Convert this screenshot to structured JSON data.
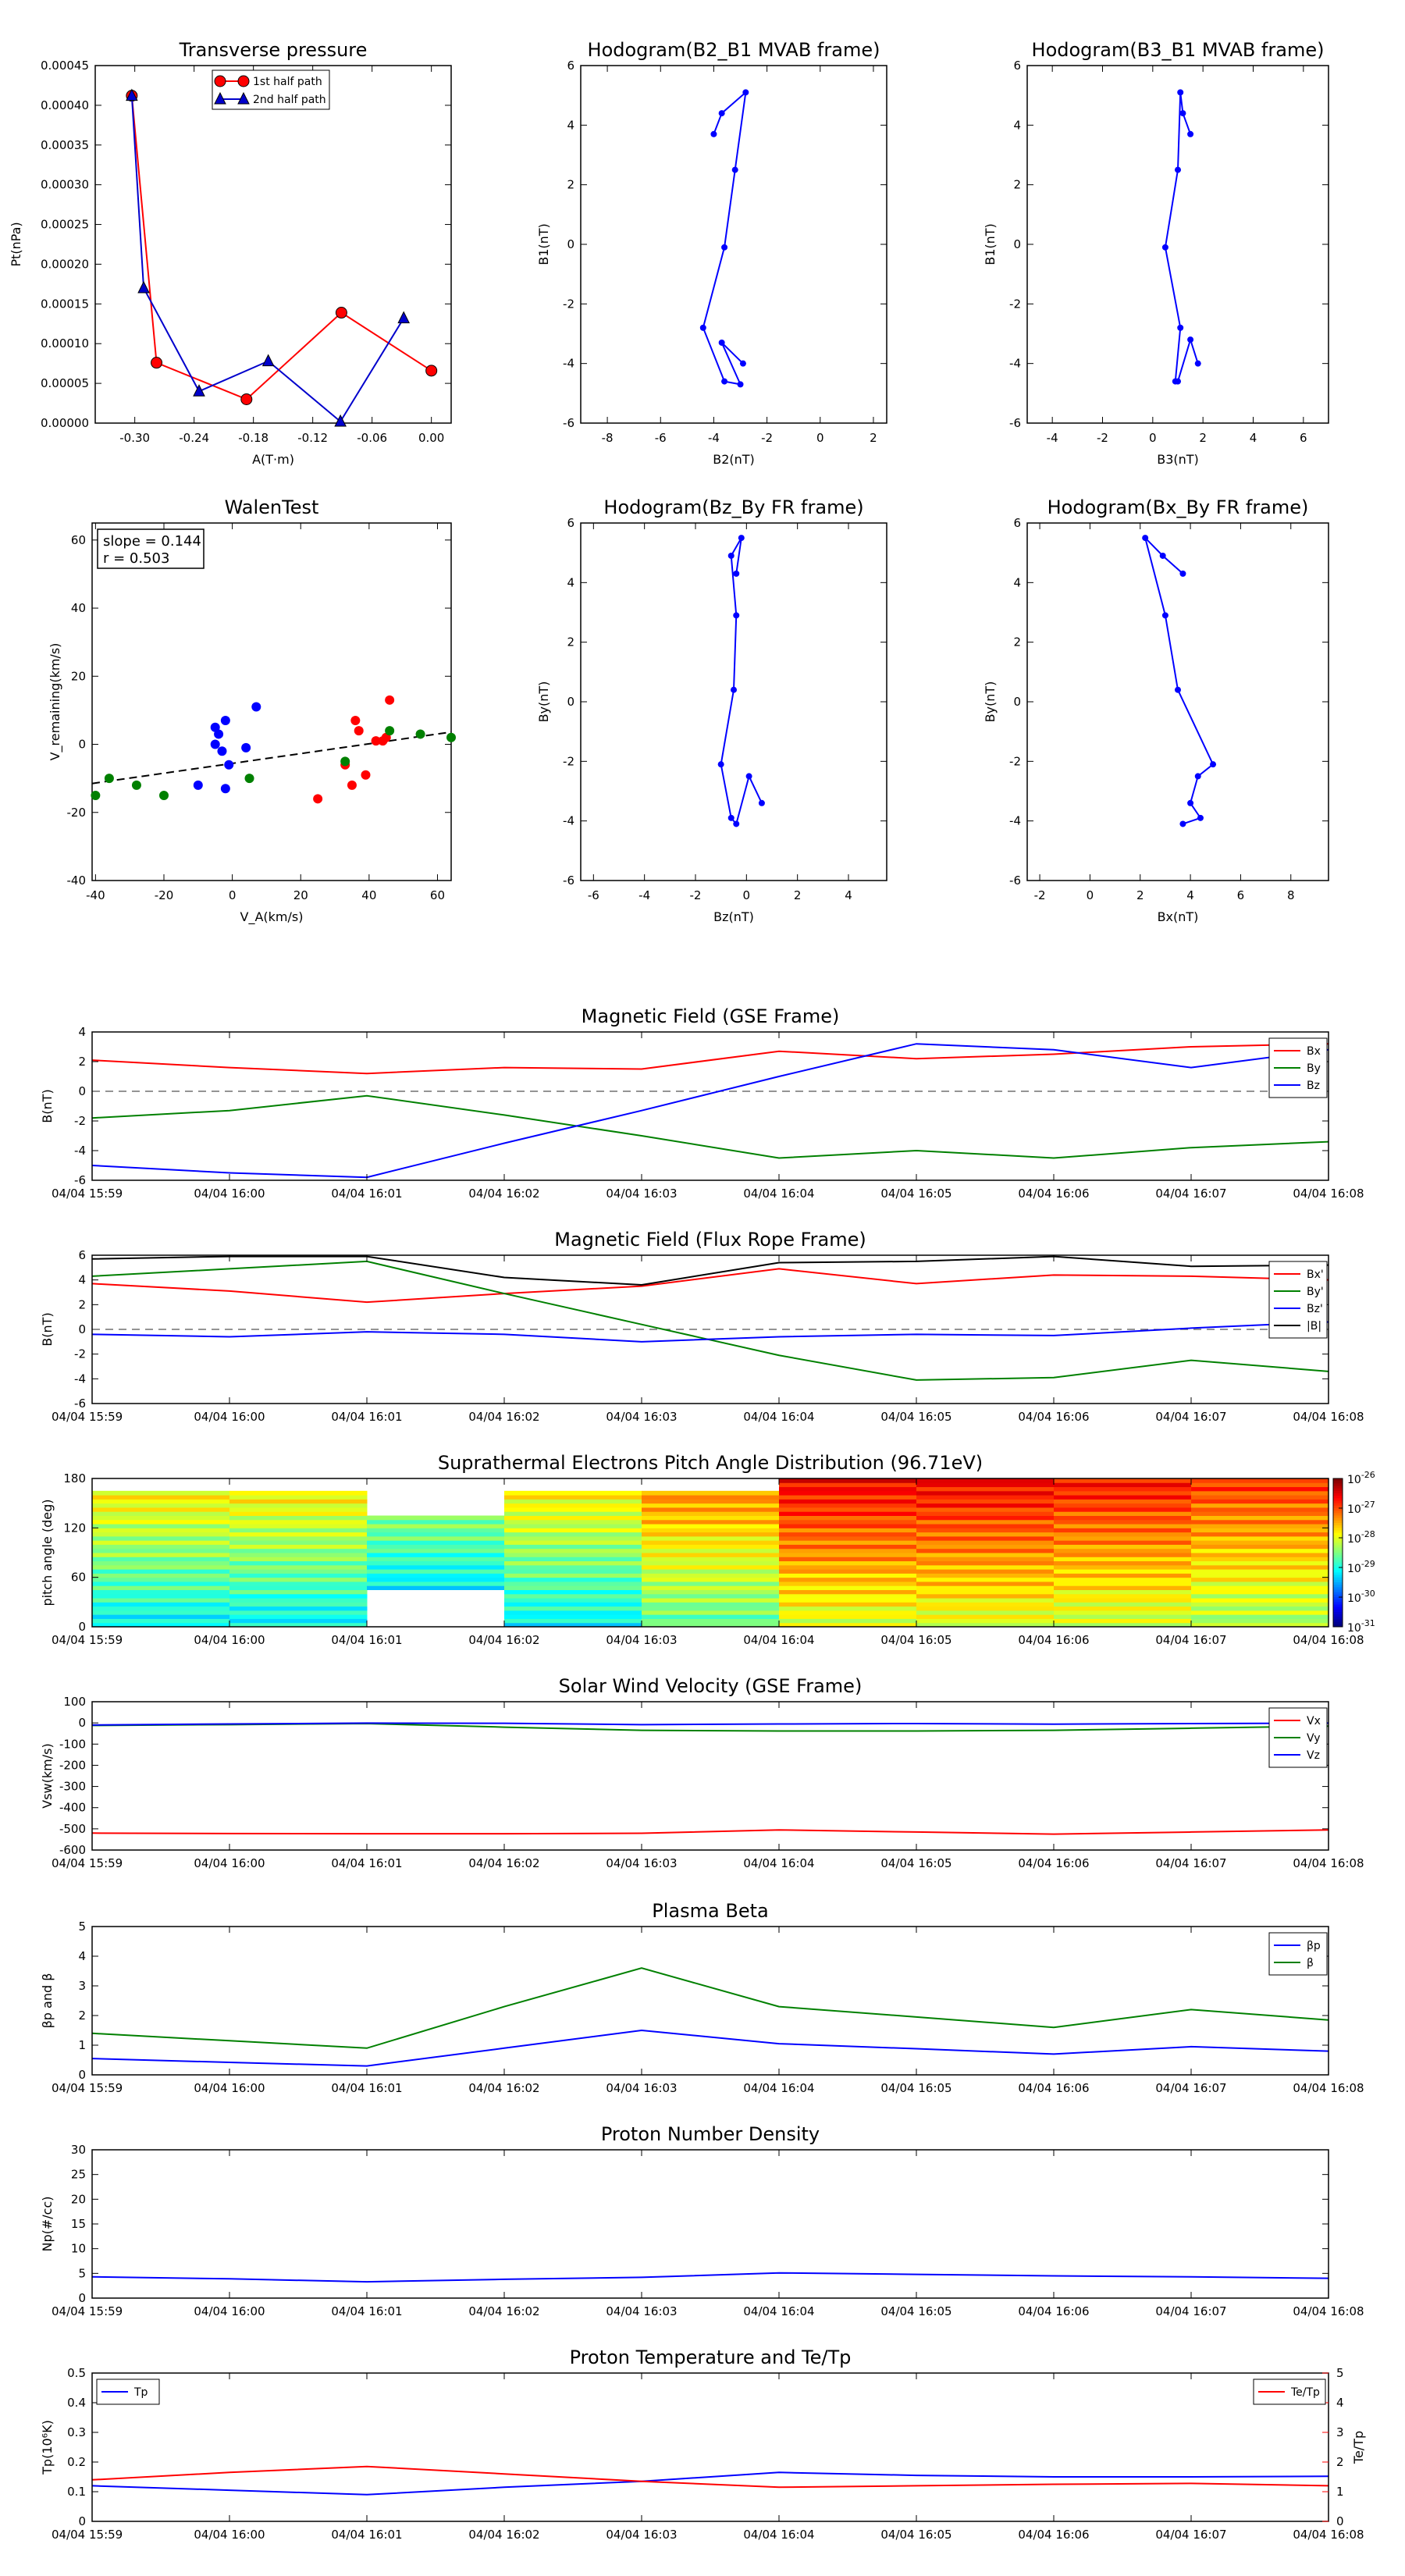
{
  "chart_data": [
    {
      "id": "pt",
      "type": "scatter",
      "title": "Transverse pressure",
      "xlabel": "A(T·m)",
      "ylabel": "Pt(nPa)",
      "xlim": [
        -0.34,
        0.02
      ],
      "ylim": [
        0,
        0.00045
      ],
      "xticks": [
        -0.3,
        -0.24,
        -0.18,
        -0.12,
        -0.06,
        0.0
      ],
      "xtick_labels": [
        "-0.30",
        "-0.24",
        "-0.18",
        "-0.12",
        "-0.06",
        "0.00"
      ],
      "yticks": [
        0,
        5e-05,
        0.0001,
        0.00015,
        0.0002,
        0.00025,
        0.0003,
        0.00035,
        0.0004,
        0.00045
      ],
      "ytick_labels": [
        "0.00000",
        "0.00005",
        "0.00010",
        "0.00015",
        "0.00020",
        "0.00025",
        "0.00030",
        "0.00035",
        "0.00040",
        "0.00045"
      ],
      "legend": "top-center",
      "series": [
        {
          "name": "1st half path",
          "color": "#ff0000",
          "marker": "circle",
          "x": [
            -0.303,
            -0.278,
            -0.187,
            -0.091,
            0.0
          ],
          "y": [
            0.000412,
            7.6e-05,
            3e-05,
            0.000139,
            6.6e-05
          ]
        },
        {
          "name": "2nd half path",
          "color": "#0000cc",
          "marker": "triangle",
          "x": [
            -0.303,
            -0.291,
            -0.235,
            -0.165,
            -0.092,
            -0.028
          ],
          "y": [
            0.000412,
            0.00017,
            4e-05,
            7.8e-05,
            2e-06,
            0.000132
          ]
        }
      ]
    },
    {
      "id": "h21",
      "type": "line",
      "title": "Hodogram(B2_B1 MVAB frame)",
      "xlabel": "B2(nT)",
      "ylabel": "B1(nT)",
      "xlim": [
        -9,
        2.5
      ],
      "ylim": [
        -6,
        6
      ],
      "xticks": [
        -8,
        -6,
        -4,
        -2,
        0,
        2
      ],
      "yticks": [
        -6,
        -4,
        -2,
        0,
        2,
        4,
        6
      ],
      "series": [
        {
          "color": "#0000ff",
          "x": [
            -4.0,
            -3.7,
            -2.8,
            -3.2,
            -3.6,
            -4.4,
            -3.6,
            -3.0,
            -3.7,
            -2.9
          ],
          "y": [
            3.7,
            4.4,
            5.1,
            2.5,
            -0.1,
            -2.8,
            -4.6,
            -4.7,
            -3.3,
            -4.0
          ]
        }
      ]
    },
    {
      "id": "h31",
      "type": "line",
      "title": "Hodogram(B3_B1 MVAB frame)",
      "xlabel": "B3(nT)",
      "ylabel": "B1(nT)",
      "xlim": [
        -5,
        7
      ],
      "ylim": [
        -6,
        6
      ],
      "xticks": [
        -4,
        -2,
        0,
        2,
        4,
        6
      ],
      "yticks": [
        -6,
        -4,
        -2,
        0,
        2,
        4,
        6
      ],
      "series": [
        {
          "color": "#0000ff",
          "x": [
            1.5,
            1.2,
            1.1,
            1.0,
            0.5,
            1.1,
            0.9,
            1.0,
            1.5,
            1.8
          ],
          "y": [
            3.7,
            4.4,
            5.1,
            2.5,
            -0.1,
            -2.8,
            -4.6,
            -4.6,
            -3.2,
            -4.0
          ]
        }
      ]
    },
    {
      "id": "walen",
      "type": "scatter",
      "title": "WalenTest",
      "xlabel": "V_A(km/s)",
      "ylabel": "V_remaining(km/s)",
      "xlim": [
        -41,
        64
      ],
      "ylim": [
        -40,
        65
      ],
      "xticks": [
        -40,
        -20,
        0,
        20,
        40,
        60
      ],
      "yticks": [
        -40,
        -20,
        0,
        20,
        40,
        60
      ],
      "annotation": {
        "slope": "slope = 0.144",
        "r": "r = 0.503"
      },
      "fit": {
        "slope": 0.144,
        "intercept": -5.6,
        "color": "#000000"
      },
      "series": [
        {
          "color": "#0000ff",
          "x": [
            -5,
            -4,
            -2,
            -1,
            -3,
            -5,
            -10,
            -2,
            4,
            7
          ],
          "y": [
            5,
            3,
            7,
            -6,
            -2,
            0,
            -12,
            -13,
            -1,
            11
          ]
        },
        {
          "color": "#ff0000",
          "x": [
            25,
            33,
            35,
            36,
            37,
            39,
            42,
            44,
            45,
            46
          ],
          "y": [
            -16,
            -6,
            -12,
            7,
            4,
            -9,
            1,
            1,
            2,
            13
          ]
        },
        {
          "color": "#008000",
          "x": [
            -40,
            -36,
            -28,
            -20,
            5,
            33,
            46,
            55,
            64
          ],
          "y": [
            -15,
            -10,
            -12,
            -15,
            -10,
            -5,
            4,
            3,
            2
          ]
        }
      ]
    },
    {
      "id": "hzy",
      "type": "line",
      "title": "Hodogram(Bz_By FR frame)",
      "xlabel": "Bz(nT)",
      "ylabel": "By(nT)",
      "xlim": [
        -6.5,
        5.5
      ],
      "ylim": [
        -6,
        6
      ],
      "xticks": [
        -6,
        -4,
        -2,
        0,
        2,
        4
      ],
      "yticks": [
        -6,
        -4,
        -2,
        0,
        2,
        4,
        6
      ],
      "series": [
        {
          "color": "#0000ff",
          "x": [
            -0.4,
            -0.2,
            -0.6,
            -0.4,
            -0.5,
            -1.0,
            -0.6,
            -0.4,
            0.1,
            0.6
          ],
          "y": [
            4.3,
            5.5,
            4.9,
            2.9,
            0.4,
            -2.1,
            -3.9,
            -4.1,
            -2.5,
            -3.4
          ]
        }
      ]
    },
    {
      "id": "hxy",
      "type": "line",
      "title": "Hodogram(Bx_By FR frame)",
      "xlabel": "Bx(nT)",
      "ylabel": "By(nT)",
      "xlim": [
        -2.5,
        9.5
      ],
      "ylim": [
        -6,
        6
      ],
      "xticks": [
        -2,
        0,
        2,
        4,
        6,
        8
      ],
      "yticks": [
        -6,
        -4,
        -2,
        0,
        2,
        4,
        6
      ],
      "series": [
        {
          "color": "#0000ff",
          "x": [
            3.7,
            2.9,
            2.2,
            3.0,
            3.5,
            4.9,
            4.3,
            4.0,
            4.4,
            3.7
          ],
          "y": [
            4.3,
            4.9,
            5.5,
            2.9,
            0.4,
            -2.1,
            -2.5,
            -3.4,
            -3.9,
            -4.1
          ]
        }
      ]
    },
    {
      "id": "bgse",
      "type": "line",
      "title": "Magnetic Field (GSE Frame)",
      "ylabel": "B(nT)",
      "ylim": [
        -6,
        4
      ],
      "yticks": [
        -6,
        -4,
        -2,
        0,
        2,
        4
      ],
      "zero_line": true,
      "legend": "top-right",
      "series": [
        {
          "name": "Bx",
          "color": "#ff0000",
          "values": [
            2.1,
            1.6,
            1.2,
            1.6,
            1.5,
            2.7,
            2.2,
            2.5,
            3.0,
            3.2
          ]
        },
        {
          "name": "By",
          "color": "#008000",
          "values": [
            -1.8,
            -1.3,
            -0.3,
            -1.6,
            -3.0,
            -4.5,
            -4.0,
            -4.5,
            -3.8,
            -3.4
          ]
        },
        {
          "name": "Bz",
          "color": "#0000ff",
          "values": [
            -5.0,
            -5.5,
            -5.8,
            -3.5,
            -1.3,
            1.0,
            3.2,
            2.8,
            1.6,
            2.8
          ]
        }
      ]
    },
    {
      "id": "bfr",
      "type": "line",
      "title": "Magnetic Field (Flux Rope Frame)",
      "ylabel": "B(nT)",
      "ylim": [
        -6,
        6
      ],
      "yticks": [
        -6,
        -4,
        -2,
        0,
        2,
        4,
        6
      ],
      "zero_line": true,
      "legend": "right",
      "series": [
        {
          "name": "Bx'",
          "color": "#ff0000",
          "values": [
            3.7,
            3.1,
            2.2,
            2.9,
            3.5,
            4.9,
            3.7,
            4.4,
            4.3,
            4.0
          ]
        },
        {
          "name": "By'",
          "color": "#008000",
          "values": [
            4.3,
            4.9,
            5.5,
            2.9,
            0.4,
            -2.1,
            -4.1,
            -3.9,
            -2.5,
            -3.4
          ]
        },
        {
          "name": "Bz'",
          "color": "#0000ff",
          "values": [
            -0.4,
            -0.6,
            -0.2,
            -0.4,
            -1.0,
            -0.6,
            -0.4,
            -0.5,
            0.1,
            0.6
          ]
        },
        {
          "name": "|B|",
          "color": "#000000",
          "values": [
            5.7,
            5.9,
            5.9,
            4.2,
            3.6,
            5.4,
            5.5,
            5.9,
            5.1,
            5.2
          ]
        }
      ]
    },
    {
      "id": "pad",
      "type": "heatmap",
      "title": "Suprathermal Electrons Pitch Angle Distribution (96.71eV)",
      "ylabel": "pitch angle (deg)",
      "ylim": [
        0,
        180
      ],
      "yticks": [
        0,
        60,
        120,
        180
      ],
      "colorbar_labels": [
        "10-26",
        "10-27",
        "10-28",
        "10-29",
        "10-30",
        "10-31"
      ],
      "colorbar_exponents": [
        "-26",
        "-27",
        "-28",
        "-29",
        "-30",
        "-31"
      ],
      "log_min": -31,
      "log_max": -26,
      "column_tops": [
        165,
        165,
        135,
        165,
        165,
        180,
        180,
        180,
        180
      ],
      "column_bottoms": [
        0,
        0,
        45,
        0,
        0,
        0,
        0,
        0,
        0
      ],
      "column_levels": [
        -28.4,
        -28.4,
        -28.8,
        -28.4,
        -27.9,
        -27.3,
        -27.3,
        -27.4,
        -27.6
      ]
    },
    {
      "id": "vsw",
      "type": "line",
      "title": "Solar Wind Velocity (GSE Frame)",
      "ylabel": "Vsw(km/s)",
      "ylim": [
        -600,
        100
      ],
      "yticks": [
        -600,
        -500,
        -400,
        -300,
        -200,
        -100,
        0,
        100
      ],
      "legend": "top-right",
      "series": [
        {
          "name": "Vx",
          "color": "#ff0000",
          "values": [
            -520,
            -522,
            -523,
            -523,
            -521,
            -505,
            -515,
            -525,
            -515,
            -505
          ]
        },
        {
          "name": "Vy",
          "color": "#008000",
          "values": [
            -12,
            -8,
            -3,
            -20,
            -35,
            -38,
            -38,
            -35,
            -25,
            -15
          ]
        },
        {
          "name": "Vz",
          "color": "#0000ff",
          "values": [
            -10,
            -5,
            -1,
            -2,
            -8,
            -5,
            -3,
            -6,
            -3,
            -1
          ]
        }
      ]
    },
    {
      "id": "beta",
      "type": "line",
      "title": "Plasma Beta",
      "ylabel": "βp and β",
      "ylim": [
        0,
        5
      ],
      "yticks": [
        0,
        1,
        2,
        3,
        4,
        5
      ],
      "legend": "top-right",
      "series": [
        {
          "name": "βp",
          "color": "#0000ff",
          "values": [
            0.55,
            0.42,
            0.3,
            0.9,
            1.5,
            1.05,
            0.88,
            0.7,
            0.95,
            0.8
          ]
        },
        {
          "name": "β",
          "color": "#008000",
          "values": [
            1.4,
            1.15,
            0.9,
            2.3,
            3.6,
            2.3,
            1.95,
            1.6,
            2.2,
            1.85
          ]
        }
      ]
    },
    {
      "id": "np",
      "type": "line",
      "title": "Proton Number Density",
      "ylabel": "Np(#/cc)",
      "ylim": [
        0,
        30
      ],
      "yticks": [
        0,
        5,
        10,
        15,
        20,
        25,
        30
      ],
      "series": [
        {
          "name": "Np",
          "color": "#0000ff",
          "values": [
            4.3,
            3.9,
            3.3,
            3.8,
            4.2,
            5.1,
            4.8,
            4.5,
            4.3,
            4.0
          ]
        }
      ]
    },
    {
      "id": "tp",
      "type": "line",
      "title": "Proton Temperature and Te/Tp",
      "ylabel": "Tp(10⁶K)",
      "y2label": "Te/Tp",
      "ylim": [
        0,
        0.5
      ],
      "y2lim": [
        0,
        5
      ],
      "yticks": [
        0,
        0.1,
        0.2,
        0.3,
        0.4,
        0.5
      ],
      "y2ticks": [
        0,
        1,
        2,
        3,
        4,
        5
      ],
      "legend": "top-left and top-right",
      "series": [
        {
          "name": "Tp",
          "color": "#0000ff",
          "axis": "left",
          "values": [
            0.12,
            0.105,
            0.09,
            0.115,
            0.135,
            0.165,
            0.155,
            0.15,
            0.15,
            0.152
          ]
        },
        {
          "name": "Te/Tp",
          "color": "#ff0000",
          "axis": "right",
          "values": [
            1.4,
            1.65,
            1.85,
            1.6,
            1.35,
            1.15,
            1.2,
            1.25,
            1.28,
            1.2
          ]
        }
      ]
    }
  ],
  "time_axis": {
    "labels": [
      "04/04 15:59",
      "04/04 16:00",
      "04/04 16:01",
      "04/04 16:02",
      "04/04 16:03",
      "04/04 16:04",
      "04/04 16:05",
      "04/04 16:06",
      "04/04 16:07",
      "04/04 16:08"
    ]
  }
}
